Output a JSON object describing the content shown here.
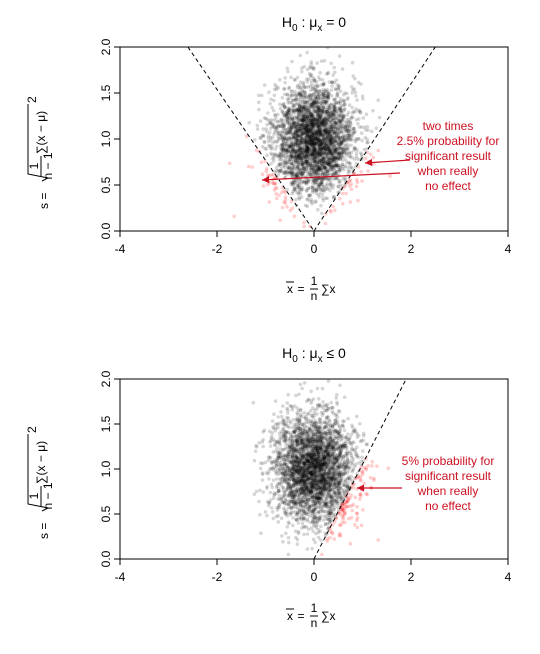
{
  "chart_data": [
    {
      "type": "scatter",
      "title_base": "H",
      "title_sub": "0",
      "title_mid": " : μ",
      "title_sub2": "x",
      "title_rel": " = 0",
      "xlabel_lhs": "x",
      "xlabel_eq": " = ",
      "xlabel_frac_num": "1",
      "xlabel_frac_den": "n",
      "xlabel_rest": "∑x",
      "ylabel_lhs": "s = ",
      "ylabel_frac_num": "1",
      "ylabel_frac_den": "n − 1",
      "ylabel_rest": "∑(x − μ)",
      "ylabel_sup": "2",
      "xlim": [
        -4,
        4
      ],
      "ylim": [
        0,
        2
      ],
      "xticks": [
        "-4",
        "-2",
        "0",
        "2",
        "4"
      ],
      "yticks": [
        "0.0",
        "0.5",
        "1.0",
        "1.5",
        "2.0"
      ],
      "sample_mean_center": 0,
      "sample_sd_center": 1.0,
      "rejection_region": "two-sided",
      "boundary_lines": [
        {
          "name": "left",
          "x": [
            -2.6,
            0
          ],
          "y": [
            2.0,
            0
          ]
        },
        {
          "name": "right",
          "x": [
            0,
            2.5
          ],
          "y": [
            0,
            2.0
          ]
        }
      ],
      "annotation": [
        "two times",
        "2.5% probability for",
        "significant result",
        "when really",
        "no effect"
      ],
      "colors": {
        "points": "#000000",
        "rejected_points": "#ff2222",
        "annotation": "#cc1122"
      }
    },
    {
      "type": "scatter",
      "title_base": "H",
      "title_sub": "0",
      "title_mid": " : μ",
      "title_sub2": "x",
      "title_rel": " ≤ 0",
      "xlabel_lhs": "x",
      "xlabel_eq": " = ",
      "xlabel_frac_num": "1",
      "xlabel_frac_den": "n",
      "xlabel_rest": "∑x",
      "ylabel_lhs": "s = ",
      "ylabel_frac_num": "1",
      "ylabel_frac_den": "n − 1",
      "ylabel_rest": "∑(x − μ)",
      "ylabel_sup": "2",
      "xlim": [
        -4,
        4
      ],
      "ylim": [
        0,
        2
      ],
      "xticks": [
        "-4",
        "-2",
        "0",
        "2",
        "4"
      ],
      "yticks": [
        "0.0",
        "0.5",
        "1.0",
        "1.5",
        "2.0"
      ],
      "sample_mean_center": 0,
      "sample_sd_center": 1.0,
      "rejection_region": "right",
      "boundary_lines": [
        {
          "name": "right",
          "x": [
            0,
            1.9
          ],
          "y": [
            0,
            2.0
          ]
        }
      ],
      "annotation": [
        "5% probability for",
        "significant result",
        "when really",
        "no effect"
      ],
      "colors": {
        "points": "#000000",
        "rejected_points": "#ff2222",
        "annotation": "#cc1122"
      }
    }
  ]
}
